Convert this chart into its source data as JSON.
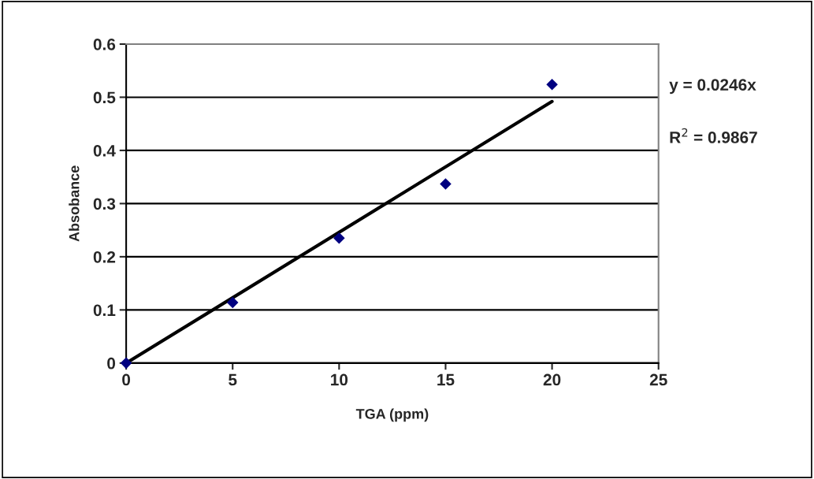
{
  "chart_data": {
    "type": "scatter",
    "xlabel": "TGA (ppm)",
    "ylabel": "Absobance",
    "series": [
      {
        "color": "#000080",
        "marker": "diamond",
        "x": [
          0,
          5,
          10,
          15,
          20
        ],
        "values": [
          0,
          0.114,
          0.235,
          0.337,
          0.524
        ]
      },
      {
        "type": "line",
        "color": "#000000",
        "x": [
          0,
          20
        ],
        "values": [
          0,
          0.492
        ]
      }
    ],
    "xlim": [
      0,
      25
    ],
    "xticks": [
      0,
      5,
      10,
      15,
      20,
      25
    ],
    "ylim": [
      0,
      0.6
    ],
    "yticks": [
      0,
      0.1,
      0.2,
      0.3,
      0.4,
      0.5,
      0.6
    ],
    "grid": "y",
    "legend": false,
    "annotations": [
      "y = 0.0246x",
      "R$^{2}$ = 0.9867"
    ]
  }
}
